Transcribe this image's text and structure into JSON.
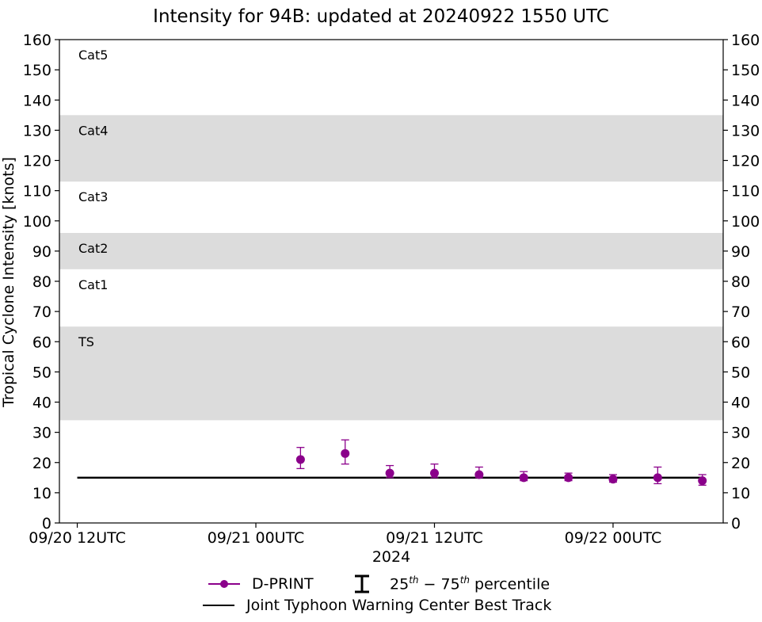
{
  "chart_data": {
    "type": "scatter",
    "title": "Intensity for 94B: updated at 20240922 1550 UTC",
    "xlabel": "2024",
    "ylabel": "Tropical Cyclone Intensity [knots]",
    "ylim": [
      0,
      160
    ],
    "yticks": [
      0,
      10,
      20,
      30,
      40,
      50,
      60,
      70,
      80,
      90,
      100,
      110,
      120,
      130,
      140,
      150,
      160
    ],
    "xlim_hours": [
      -1.2,
      43.4
    ],
    "xticks": [
      {
        "hour": 0,
        "label": "09/20 12UTC"
      },
      {
        "hour": 12,
        "label": "09/21 00UTC"
      },
      {
        "hour": 24,
        "label": "09/21 12UTC"
      },
      {
        "hour": 36,
        "label": "09/22 00UTC"
      }
    ],
    "bands": [
      {
        "label": "TS",
        "from": 34,
        "to": 65,
        "shaded": true
      },
      {
        "label": "Cat1",
        "from": 65,
        "to": 84,
        "shaded": false
      },
      {
        "label": "Cat2",
        "from": 84,
        "to": 96,
        "shaded": true
      },
      {
        "label": "Cat3",
        "from": 96,
        "to": 113,
        "shaded": false
      },
      {
        "label": "Cat4",
        "from": 113,
        "to": 135,
        "shaded": true
      },
      {
        "label": "Cat5",
        "from": 135,
        "to": 160,
        "shaded": false
      }
    ],
    "series": [
      {
        "name": "D-PRINT",
        "color": "#8b008b",
        "points": [
          {
            "hour": 15,
            "value": 21,
            "p25": 18,
            "p75": 25
          },
          {
            "hour": 18,
            "value": 23,
            "p25": 19.5,
            "p75": 27.5
          },
          {
            "hour": 21,
            "value": 16.5,
            "p25": 15,
            "p75": 19
          },
          {
            "hour": 24,
            "value": 16.5,
            "p25": 15,
            "p75": 19.5
          },
          {
            "hour": 27,
            "value": 16,
            "p25": 15,
            "p75": 18.5
          },
          {
            "hour": 30,
            "value": 15,
            "p25": 14,
            "p75": 17
          },
          {
            "hour": 33,
            "value": 15,
            "p25": 14,
            "p75": 16.5
          },
          {
            "hour": 36,
            "value": 14.5,
            "p25": 13.5,
            "p75": 16
          },
          {
            "hour": 39,
            "value": 15,
            "p25": 13,
            "p75": 18.5
          },
          {
            "hour": 42,
            "value": 14,
            "p25": 12.5,
            "p75": 16
          }
        ]
      },
      {
        "name": "Joint Typhoon Warning Center Best Track",
        "color": "#000000",
        "points": [
          {
            "hour": 0,
            "value": 15
          },
          {
            "hour": 42,
            "value": 15
          }
        ]
      }
    ],
    "legend": {
      "dprint_label": "D-PRINT",
      "percentile_label": "25th − 75th percentile",
      "percentile_low": "25",
      "percentile_high": "75",
      "percentile_suffix": "th",
      "percentile_dash": " − ",
      "percentile_word": " percentile",
      "besttrack_label": "Joint Typhoon Warning Center Best Track"
    }
  }
}
